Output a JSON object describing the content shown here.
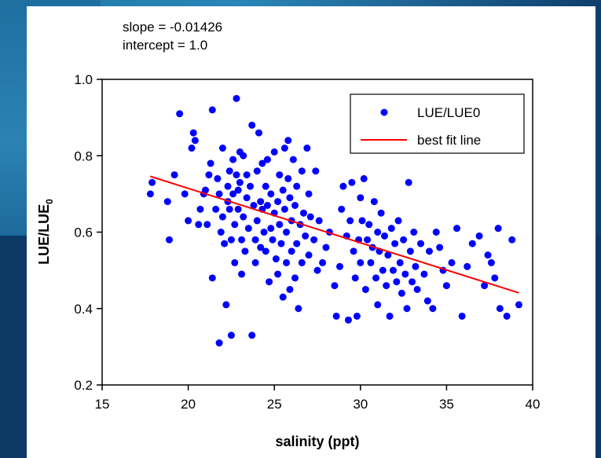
{
  "annotation": {
    "slope_text": "slope = -0.01426",
    "intercept_text": "intercept = 1.0"
  },
  "chart_data": {
    "type": "scatter",
    "xlabel": "salinity (ppt)",
    "ylabel": "LUE/LUE",
    "ylabel_subscript": "0",
    "xlim": [
      15,
      40
    ],
    "ylim": [
      0.2,
      1.0
    ],
    "xticks": [
      15,
      20,
      25,
      30,
      35,
      40
    ],
    "yticks": [
      0.2,
      0.4,
      0.6,
      0.8,
      1.0
    ],
    "xtick_labels": [
      "15",
      "20",
      "25",
      "30",
      "35",
      "40"
    ],
    "ytick_labels": [
      "0.2",
      "0.4",
      "0.6",
      "0.8",
      "1.0"
    ],
    "legend_position": "top-right",
    "point_color": "#0000ff",
    "line_color": "#ff0000",
    "series": [
      {
        "name": "LUE/LUE0",
        "kind": "points",
        "points": [
          [
            17.8,
            0.7
          ],
          [
            17.9,
            0.73
          ],
          [
            18.8,
            0.68
          ],
          [
            18.9,
            0.58
          ],
          [
            19.2,
            0.75
          ],
          [
            19.5,
            0.91
          ],
          [
            19.8,
            0.7
          ],
          [
            20.0,
            0.63
          ],
          [
            20.2,
            0.82
          ],
          [
            20.3,
            0.86
          ],
          [
            20.4,
            0.84
          ],
          [
            20.6,
            0.62
          ],
          [
            20.7,
            0.66
          ],
          [
            20.9,
            0.7
          ],
          [
            21.0,
            0.71
          ],
          [
            21.1,
            0.62
          ],
          [
            21.2,
            0.75
          ],
          [
            21.3,
            0.78
          ],
          [
            21.4,
            0.92
          ],
          [
            21.4,
            0.48
          ],
          [
            21.6,
            0.66
          ],
          [
            21.7,
            0.74
          ],
          [
            21.8,
            0.7
          ],
          [
            21.8,
            0.31
          ],
          [
            21.9,
            0.6
          ],
          [
            22.0,
            0.82
          ],
          [
            22.0,
            0.64
          ],
          [
            22.1,
            0.57
          ],
          [
            22.2,
            0.41
          ],
          [
            22.3,
            0.68
          ],
          [
            22.3,
            0.72
          ],
          [
            22.4,
            0.76
          ],
          [
            22.4,
            0.66
          ],
          [
            22.5,
            0.58
          ],
          [
            22.5,
            0.33
          ],
          [
            22.6,
            0.79
          ],
          [
            22.6,
            0.7
          ],
          [
            22.7,
            0.62
          ],
          [
            22.7,
            0.52
          ],
          [
            22.8,
            0.75
          ],
          [
            22.8,
            0.95
          ],
          [
            22.9,
            0.71
          ],
          [
            22.9,
            0.66
          ],
          [
            23.0,
            0.81
          ],
          [
            23.0,
            0.73
          ],
          [
            23.1,
            0.58
          ],
          [
            23.1,
            0.49
          ],
          [
            23.2,
            0.8
          ],
          [
            23.2,
            0.64
          ],
          [
            23.3,
            0.55
          ],
          [
            23.4,
            0.69
          ],
          [
            23.4,
            0.75
          ],
          [
            23.5,
            0.61
          ],
          [
            23.6,
            0.72
          ],
          [
            23.7,
            0.88
          ],
          [
            23.7,
            0.33
          ],
          [
            23.8,
            0.67
          ],
          [
            23.9,
            0.58
          ],
          [
            23.9,
            0.52
          ],
          [
            24.0,
            0.76
          ],
          [
            24.0,
            0.63
          ],
          [
            24.1,
            0.86
          ],
          [
            24.2,
            0.68
          ],
          [
            24.2,
            0.56
          ],
          [
            24.3,
            0.78
          ],
          [
            24.3,
            0.66
          ],
          [
            24.4,
            0.6
          ],
          [
            24.5,
            0.72
          ],
          [
            24.5,
            0.55
          ],
          [
            24.6,
            0.79
          ],
          [
            24.6,
            0.67
          ],
          [
            24.7,
            0.47
          ],
          [
            24.8,
            0.61
          ],
          [
            24.8,
            0.7
          ],
          [
            24.9,
            0.58
          ],
          [
            25.0,
            0.81
          ],
          [
            25.0,
            0.65
          ],
          [
            25.1,
            0.53
          ],
          [
            25.2,
            0.68
          ],
          [
            25.2,
            0.49
          ],
          [
            25.3,
            0.75
          ],
          [
            25.3,
            0.62
          ],
          [
            25.4,
            0.57
          ],
          [
            25.5,
            0.71
          ],
          [
            25.5,
            0.43
          ],
          [
            25.6,
            0.82
          ],
          [
            25.6,
            0.66
          ],
          [
            25.7,
            0.6
          ],
          [
            25.7,
            0.52
          ],
          [
            25.8,
            0.74
          ],
          [
            25.8,
            0.84
          ],
          [
            25.9,
            0.69
          ],
          [
            25.9,
            0.45
          ],
          [
            26.0,
            0.63
          ],
          [
            26.0,
            0.55
          ],
          [
            26.1,
            0.79
          ],
          [
            26.2,
            0.48
          ],
          [
            26.2,
            0.67
          ],
          [
            26.3,
            0.57
          ],
          [
            26.3,
            0.72
          ],
          [
            26.4,
            0.4
          ],
          [
            26.5,
            0.62
          ],
          [
            26.6,
            0.76
          ],
          [
            26.6,
            0.52
          ],
          [
            26.7,
            0.65
          ],
          [
            26.8,
            0.59
          ],
          [
            26.9,
            0.82
          ],
          [
            27.0,
            0.7
          ],
          [
            27.0,
            0.54
          ],
          [
            27.1,
            0.64
          ],
          [
            27.3,
            0.58
          ],
          [
            27.4,
            0.76
          ],
          [
            27.5,
            0.5
          ],
          [
            27.6,
            0.63
          ],
          [
            27.8,
            0.52
          ],
          [
            28.0,
            0.56
          ],
          [
            28.2,
            0.6
          ],
          [
            28.5,
            0.46
          ],
          [
            28.6,
            0.38
          ],
          [
            28.8,
            0.51
          ],
          [
            28.9,
            0.66
          ],
          [
            29.0,
            0.72
          ],
          [
            29.2,
            0.59
          ],
          [
            29.3,
            0.37
          ],
          [
            29.4,
            0.63
          ],
          [
            29.5,
            0.73
          ],
          [
            29.6,
            0.55
          ],
          [
            29.7,
            0.48
          ],
          [
            29.8,
            0.38
          ],
          [
            29.9,
            0.58
          ],
          [
            30.0,
            0.69
          ],
          [
            30.0,
            0.52
          ],
          [
            30.1,
            0.63
          ],
          [
            30.2,
            0.74
          ],
          [
            30.3,
            0.45
          ],
          [
            30.4,
            0.58
          ],
          [
            30.5,
            0.62
          ],
          [
            30.6,
            0.52
          ],
          [
            30.7,
            0.56
          ],
          [
            30.8,
            0.68
          ],
          [
            30.9,
            0.48
          ],
          [
            31.0,
            0.6
          ],
          [
            31.0,
            0.41
          ],
          [
            31.1,
            0.55
          ],
          [
            31.2,
            0.65
          ],
          [
            31.3,
            0.5
          ],
          [
            31.4,
            0.59
          ],
          [
            31.5,
            0.46
          ],
          [
            31.6,
            0.54
          ],
          [
            31.7,
            0.38
          ],
          [
            31.8,
            0.61
          ],
          [
            31.9,
            0.5
          ],
          [
            32.0,
            0.57
          ],
          [
            32.1,
            0.47
          ],
          [
            32.2,
            0.63
          ],
          [
            32.3,
            0.52
          ],
          [
            32.4,
            0.44
          ],
          [
            32.5,
            0.58
          ],
          [
            32.6,
            0.49
          ],
          [
            32.7,
            0.4
          ],
          [
            32.8,
            0.73
          ],
          [
            32.9,
            0.55
          ],
          [
            33.0,
            0.47
          ],
          [
            33.1,
            0.6
          ],
          [
            33.2,
            0.51
          ],
          [
            33.3,
            0.45
          ],
          [
            33.5,
            0.57
          ],
          [
            33.7,
            0.49
          ],
          [
            33.9,
            0.42
          ],
          [
            34.0,
            0.55
          ],
          [
            34.2,
            0.4
          ],
          [
            34.4,
            0.6
          ],
          [
            34.6,
            0.56
          ],
          [
            34.8,
            0.5
          ],
          [
            35.0,
            0.46
          ],
          [
            35.3,
            0.52
          ],
          [
            35.6,
            0.61
          ],
          [
            35.9,
            0.38
          ],
          [
            36.2,
            0.51
          ],
          [
            36.5,
            0.57
          ],
          [
            36.9,
            0.59
          ],
          [
            37.2,
            0.46
          ],
          [
            37.4,
            0.54
          ],
          [
            37.6,
            0.52
          ],
          [
            37.8,
            0.48
          ],
          [
            38.0,
            0.61
          ],
          [
            38.1,
            0.4
          ],
          [
            38.5,
            0.38
          ],
          [
            38.8,
            0.58
          ],
          [
            39.2,
            0.41
          ]
        ]
      },
      {
        "name": "best fit line",
        "kind": "line",
        "points": [
          [
            17.8,
            0.746
          ],
          [
            39.2,
            0.441
          ]
        ]
      }
    ]
  }
}
